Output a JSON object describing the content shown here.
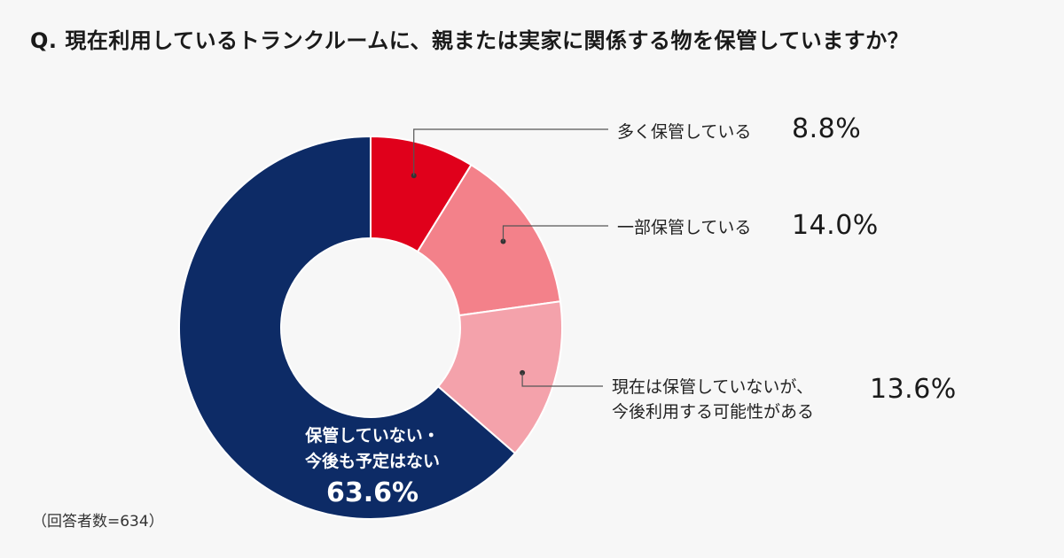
{
  "question": "Q. 現在利用しているトランクルームに、親または実家に関係する物を保管していますか？",
  "footnote": "（回答者数=634）",
  "chart_data": {
    "type": "pie",
    "donut": true,
    "start": "top, clockwise",
    "slices": [
      {
        "label": "多く保管している",
        "value": 8.8,
        "value_label": "8.8%",
        "color": "#e0001b"
      },
      {
        "label": "一部保管している",
        "value": 14.0,
        "value_label": "14.0%",
        "color": "#f3818a"
      },
      {
        "label": "現在は保管していないが、今後利用する可能性がある",
        "label_lines": [
          "現在は保管していないが、",
          "今後利用する可能性がある"
        ],
        "value": 13.6,
        "value_label": "13.6%",
        "color": "#f4a2ab"
      },
      {
        "label": "保管していない・今後も予定はない",
        "label_lines": [
          "保管していない・",
          "今後も予定はない"
        ],
        "value": 63.6,
        "value_label": "63.6%",
        "color": "#0d2b66"
      }
    ]
  }
}
